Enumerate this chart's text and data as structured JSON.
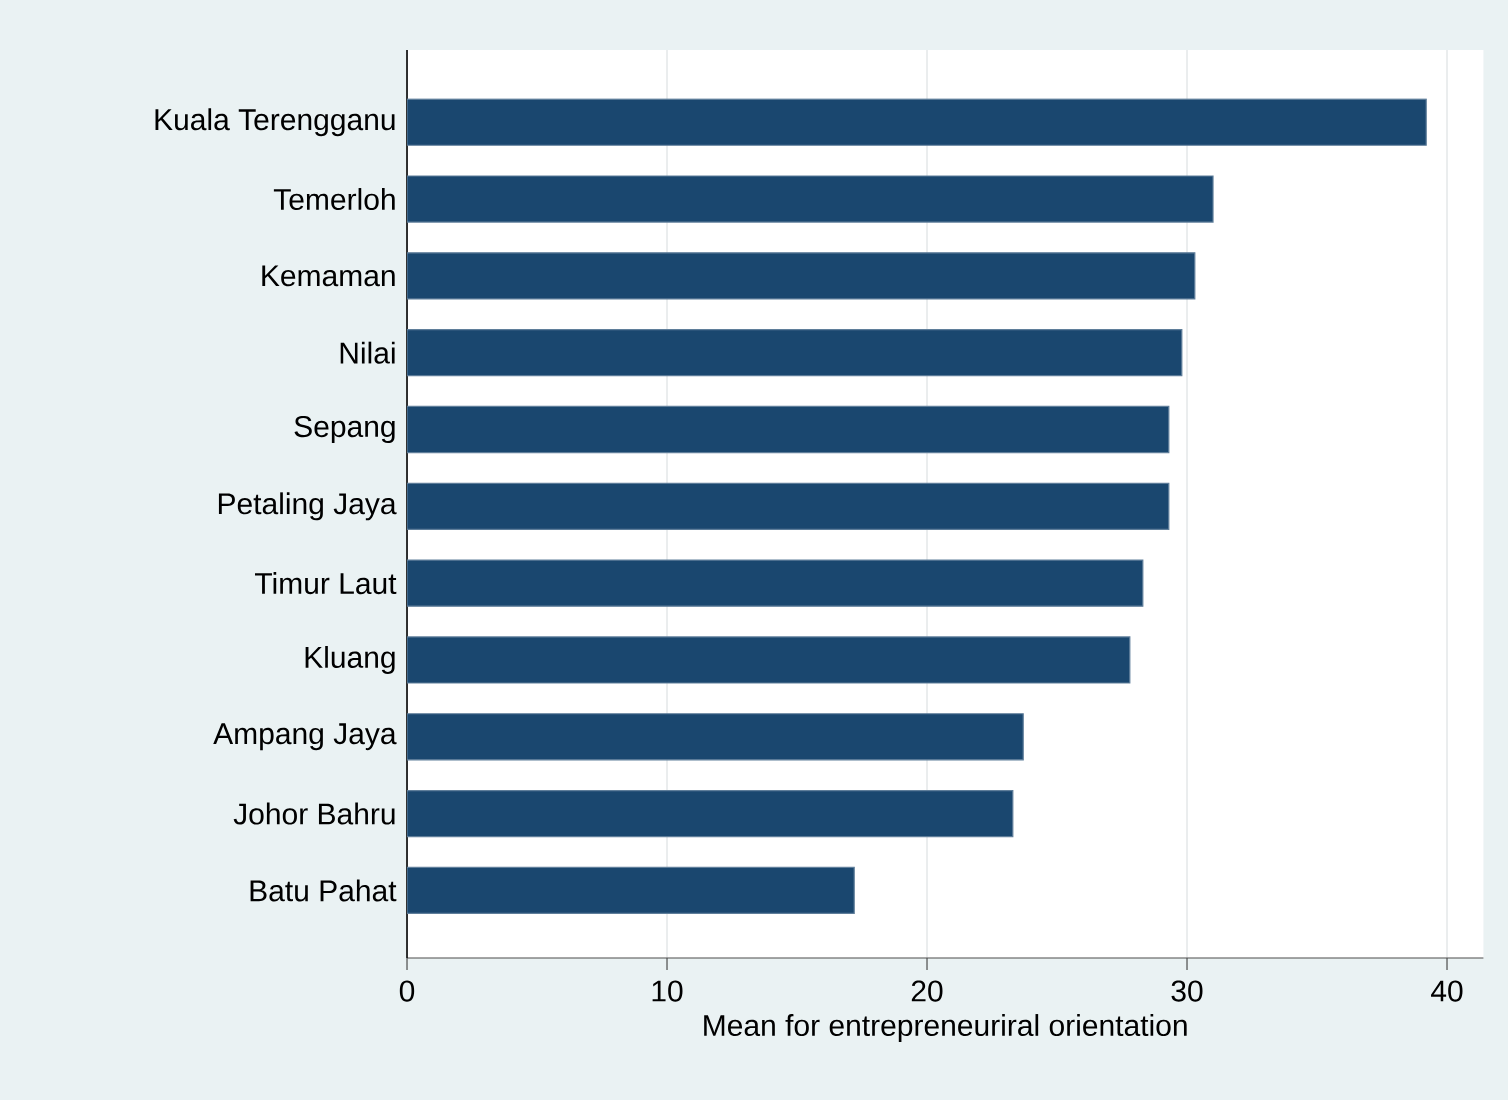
{
  "chart_data": {
    "type": "bar",
    "orientation": "horizontal",
    "categories": [
      "Kuala Terengganu",
      "Temerloh",
      "Kemaman",
      "Nilai",
      "Sepang",
      "Petaling Jaya",
      "Timur Laut",
      "Kluang",
      "Ampang Jaya",
      "Johor Bahru",
      "Batu Pahat"
    ],
    "values": [
      39.2,
      31.0,
      30.3,
      29.8,
      29.3,
      29.3,
      28.3,
      27.8,
      23.7,
      23.3,
      17.2
    ],
    "color": "#1a476f",
    "xlabel": "Mean for entrepreneuriral orientation",
    "xlim": [
      0,
      41.4
    ],
    "xticks": [
      0,
      10,
      20,
      30,
      40
    ],
    "grid": "x"
  }
}
